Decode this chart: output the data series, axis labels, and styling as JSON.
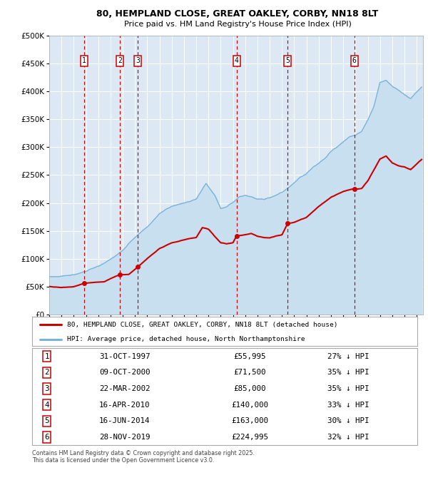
{
  "title1": "80, HEMPLAND CLOSE, GREAT OAKLEY, CORBY, NN18 8LT",
  "title2": "Price paid vs. HM Land Registry's House Price Index (HPI)",
  "property_color": "#cc0000",
  "hpi_color": "#7ab3d9",
  "hpi_fill_color": "#c8dff0",
  "plot_bg": "#dce9f5",
  "grid_color": "#ffffff",
  "transactions": [
    {
      "num": 1,
      "price": 55995,
      "x_year": 1997.83
    },
    {
      "num": 2,
      "price": 71500,
      "x_year": 2000.77
    },
    {
      "num": 3,
      "price": 85000,
      "x_year": 2002.22
    },
    {
      "num": 4,
      "price": 140000,
      "x_year": 2010.29
    },
    {
      "num": 5,
      "price": 163000,
      "x_year": 2014.46
    },
    {
      "num": 6,
      "price": 224995,
      "x_year": 2019.91
    }
  ],
  "legend_property": "80, HEMPLAND CLOSE, GREAT OAKLEY, CORBY, NN18 8LT (detached house)",
  "legend_hpi": "HPI: Average price, detached house, North Northamptonshire",
  "footer": "Contains HM Land Registry data © Crown copyright and database right 2025.\nThis data is licensed under the Open Government Licence v3.0.",
  "ylim": [
    0,
    500000
  ],
  "yticks": [
    0,
    50000,
    100000,
    150000,
    200000,
    250000,
    300000,
    350000,
    400000,
    450000,
    500000
  ],
  "xlim_start": 1995.0,
  "xlim_end": 2025.5,
  "table_rows": [
    [
      "1",
      "31-OCT-1997",
      "£55,995",
      "27% ↓ HPI"
    ],
    [
      "2",
      "09-OCT-2000",
      "£71,500",
      "35% ↓ HPI"
    ],
    [
      "3",
      "22-MAR-2002",
      "£85,000",
      "35% ↓ HPI"
    ],
    [
      "4",
      "16-APR-2010",
      "£140,000",
      "33% ↓ HPI"
    ],
    [
      "5",
      "16-JUN-2014",
      "£163,000",
      "30% ↓ HPI"
    ],
    [
      "6",
      "28-NOV-2019",
      "£224,995",
      "32% ↓ HPI"
    ]
  ]
}
